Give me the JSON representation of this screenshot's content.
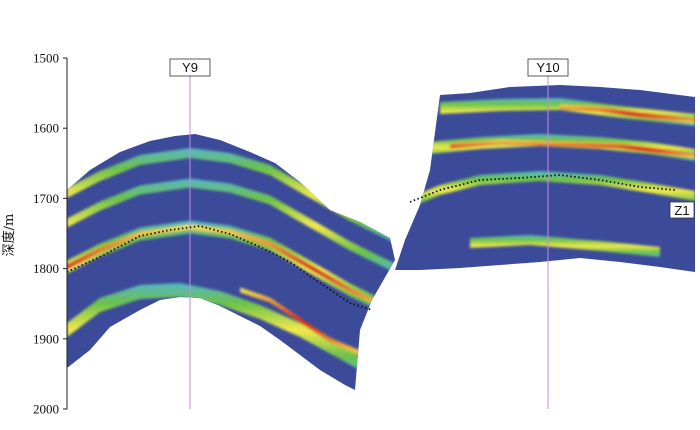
{
  "chart_data": {
    "type": "heatmap",
    "subtype": "seismic-depth-section",
    "ylabel": "深度/m",
    "ylim": [
      1500,
      2000
    ],
    "y_inverted": true,
    "yticks": [
      {
        "value": 1500,
        "label": "1500"
      },
      {
        "value": 1600,
        "label": "1600"
      },
      {
        "value": 1700,
        "label": "1700"
      },
      {
        "value": 1800,
        "label": "1800"
      },
      {
        "value": 1900,
        "label": "1900"
      },
      {
        "value": 2000,
        "label": "2000"
      }
    ],
    "wells": [
      {
        "name": "Y9",
        "label": "Y9"
      },
      {
        "name": "Y10",
        "label": "Y10"
      }
    ],
    "horizon": {
      "name": "Z1",
      "label": "Z1",
      "style": "dotted",
      "color": "#111111"
    },
    "colors": {
      "background": "#3c4a9a",
      "low": "#56b6c4",
      "mid": "#6cc24a",
      "high": "#f2e84c",
      "peak": "#d8261e",
      "well_line": "#c48be0"
    }
  }
}
